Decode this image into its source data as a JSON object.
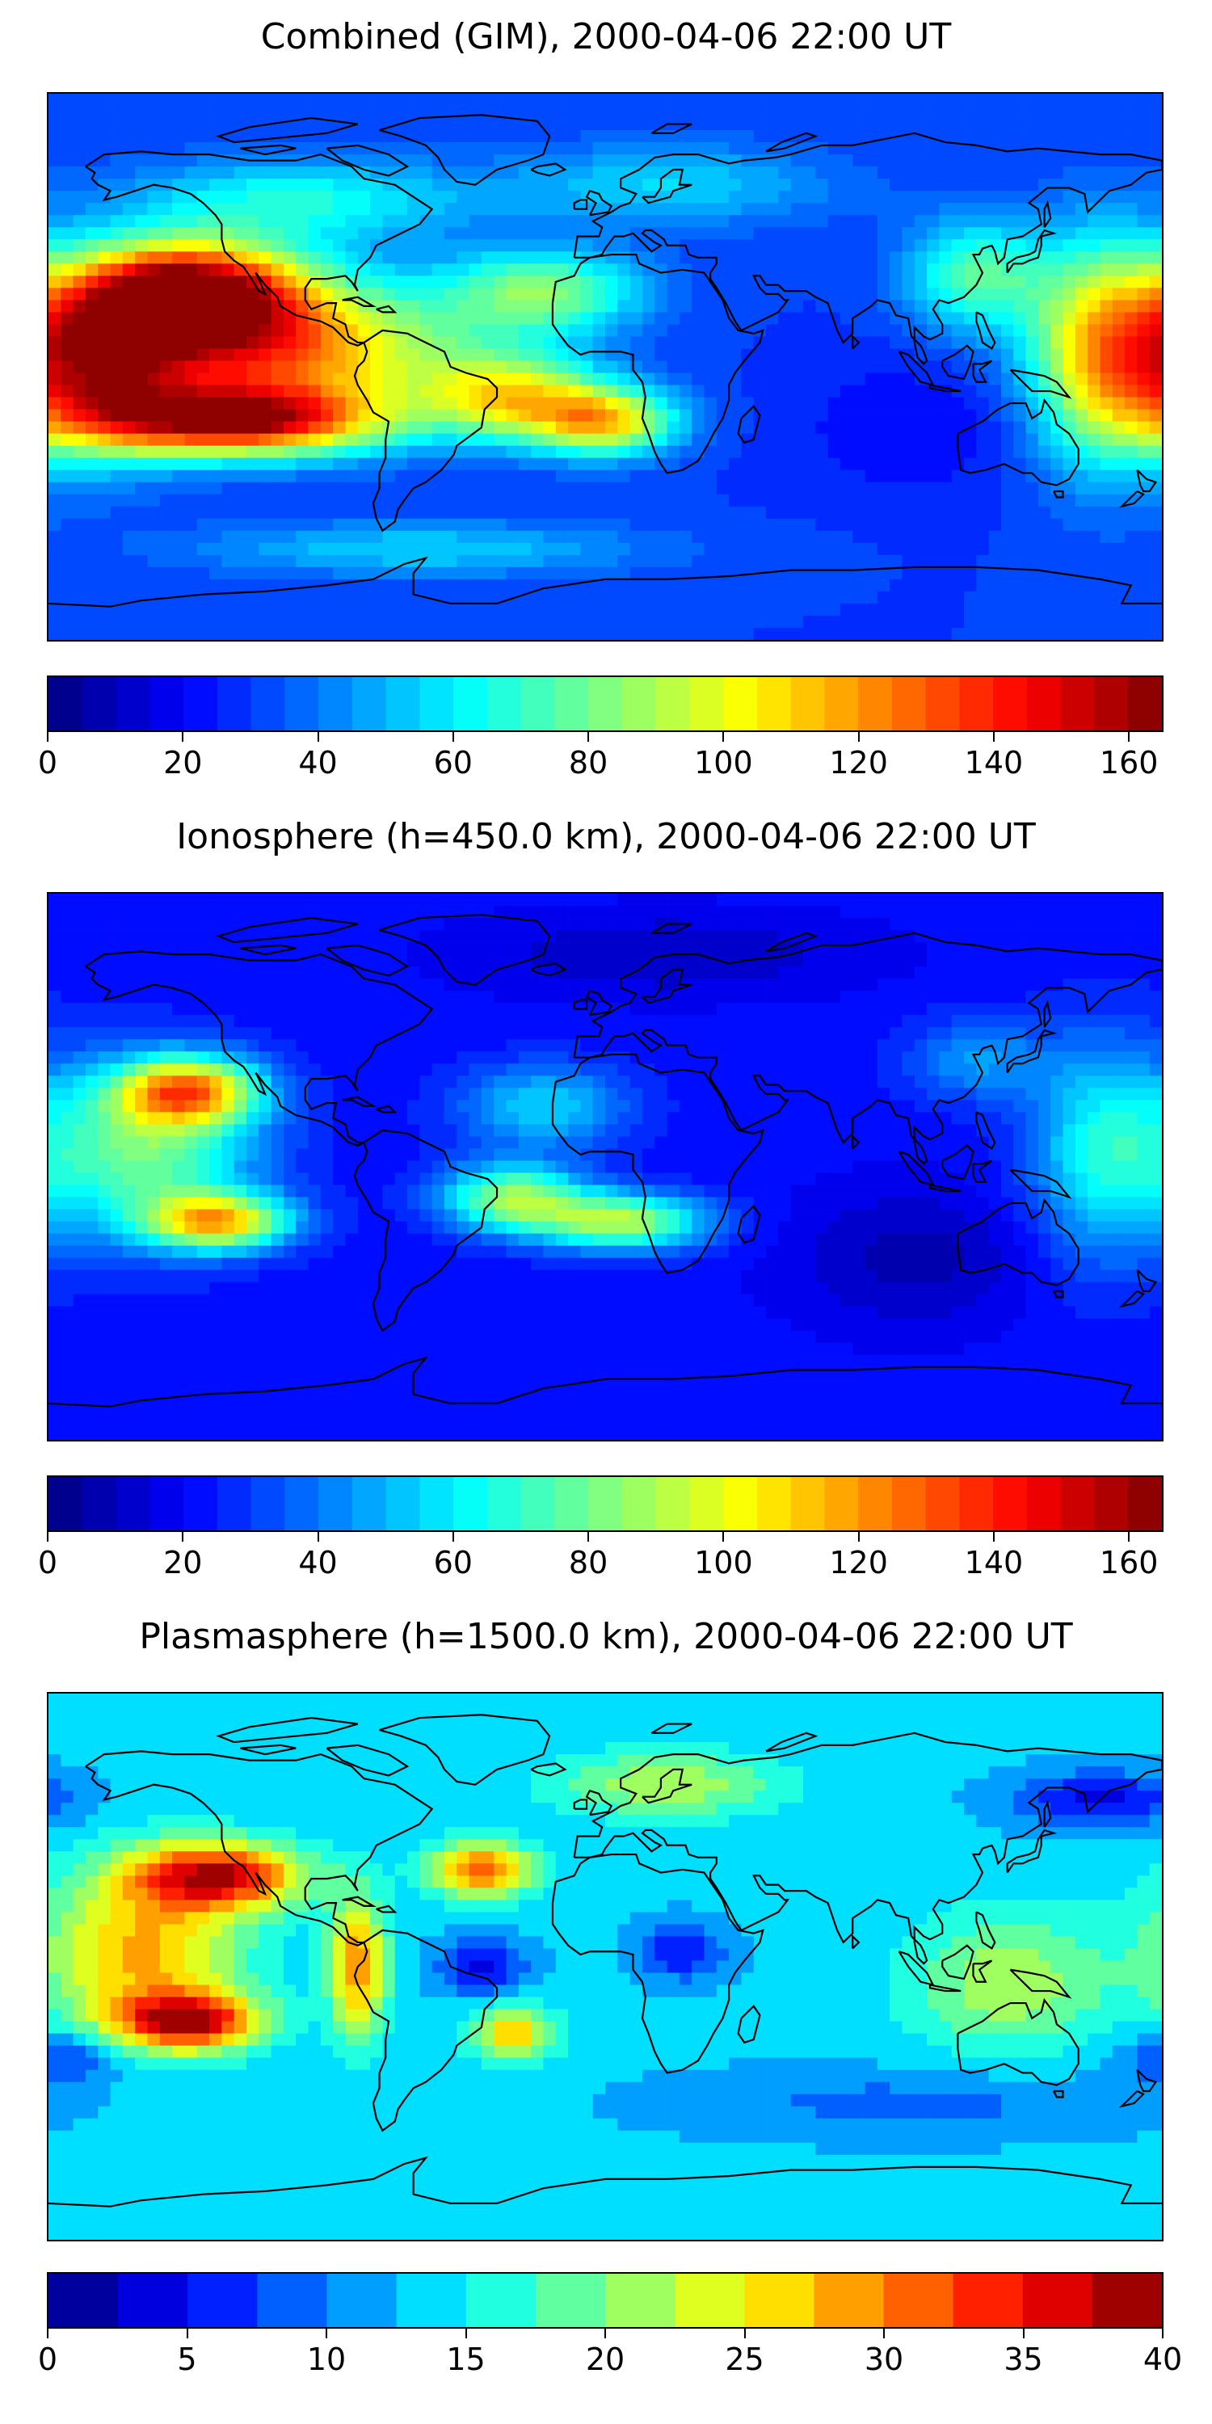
{
  "panels": [
    {
      "title": "Combined (GIM), 2000-04-06 22:00 UT",
      "colorbar": {
        "min": 0,
        "max": 165,
        "levels": 33,
        "ticks": [
          "0",
          "20",
          "40",
          "60",
          "80",
          "100",
          "120",
          "140",
          "160"
        ],
        "tick_values": [
          0,
          20,
          40,
          60,
          80,
          100,
          120,
          140,
          160
        ]
      },
      "background_value": 30,
      "blobs": [
        {
          "lon": -135,
          "lat": 25,
          "value": 155,
          "rx": 40,
          "ry": 18
        },
        {
          "lon": -110,
          "lat": 5,
          "value": 125,
          "rx": 70,
          "ry": 25
        },
        {
          "lon": -120,
          "lat": -18,
          "value": 140,
          "rx": 50,
          "ry": 12
        },
        {
          "lon": -165,
          "lat": 0,
          "value": 110,
          "rx": 30,
          "ry": 30
        },
        {
          "lon": -30,
          "lat": -10,
          "value": 95,
          "rx": 30,
          "ry": 15
        },
        {
          "lon": 0,
          "lat": -18,
          "value": 105,
          "rx": 25,
          "ry": 12
        },
        {
          "lon": -20,
          "lat": 25,
          "value": 80,
          "rx": 35,
          "ry": 15
        },
        {
          "lon": 160,
          "lat": 5,
          "value": 100,
          "rx": 25,
          "ry": 40
        },
        {
          "lon": 120,
          "lat": 30,
          "value": 75,
          "rx": 25,
          "ry": 20
        },
        {
          "lon": 20,
          "lat": 60,
          "value": 55,
          "rx": 60,
          "ry": 15
        },
        {
          "lon": -100,
          "lat": 55,
          "value": 65,
          "rx": 60,
          "ry": 15
        },
        {
          "lon": 100,
          "lat": -20,
          "value": 20,
          "rx": 40,
          "ry": 25
        },
        {
          "lon": -60,
          "lat": -60,
          "value": 55,
          "rx": 80,
          "ry": 10
        }
      ]
    },
    {
      "title": "Ionosphere  (h=450.0 km), 2000-04-06 22:00 UT",
      "colorbar": {
        "min": 0,
        "max": 165,
        "levels": 33,
        "ticks": [
          "0",
          "20",
          "40",
          "60",
          "80",
          "100",
          "120",
          "140",
          "160"
        ],
        "tick_values": [
          0,
          20,
          40,
          60,
          80,
          100,
          120,
          140,
          160
        ]
      },
      "background_value": 22,
      "blobs": [
        {
          "lon": -135,
          "lat": 25,
          "value": 110,
          "rx": 25,
          "ry": 12
        },
        {
          "lon": -125,
          "lat": -18,
          "value": 105,
          "rx": 25,
          "ry": 10
        },
        {
          "lon": -150,
          "lat": 5,
          "value": 80,
          "rx": 40,
          "ry": 30
        },
        {
          "lon": -30,
          "lat": -10,
          "value": 85,
          "rx": 25,
          "ry": 12
        },
        {
          "lon": 5,
          "lat": -18,
          "value": 90,
          "rx": 30,
          "ry": 10
        },
        {
          "lon": -20,
          "lat": 20,
          "value": 55,
          "rx": 30,
          "ry": 15
        },
        {
          "lon": 160,
          "lat": 5,
          "value": 60,
          "rx": 25,
          "ry": 40
        },
        {
          "lon": 120,
          "lat": 35,
          "value": 45,
          "rx": 25,
          "ry": 15
        },
        {
          "lon": 100,
          "lat": -30,
          "value": 8,
          "rx": 45,
          "ry": 25
        },
        {
          "lon": 20,
          "lat": 70,
          "value": 10,
          "rx": 70,
          "ry": 15
        }
      ]
    },
    {
      "title": "Plasmasphere (h=1500.0 km), 2000-04-06 22:00 UT",
      "colorbar": {
        "min": 0,
        "max": 40,
        "levels": 16,
        "ticks": [
          "0",
          "5",
          "10",
          "15",
          "20",
          "25",
          "30",
          "35",
          "40"
        ],
        "tick_values": [
          0,
          5,
          10,
          15,
          20,
          25,
          30,
          35,
          40
        ]
      },
      "background_value": 13,
      "blobs": [
        {
          "lon": -125,
          "lat": 30,
          "value": 36,
          "rx": 30,
          "ry": 12
        },
        {
          "lon": -135,
          "lat": -18,
          "value": 36,
          "rx": 25,
          "ry": 10
        },
        {
          "lon": -150,
          "lat": 5,
          "value": 28,
          "rx": 35,
          "ry": 30
        },
        {
          "lon": -80,
          "lat": 0,
          "value": 30,
          "rx": 10,
          "ry": 25
        },
        {
          "lon": -40,
          "lat": 32,
          "value": 32,
          "rx": 18,
          "ry": 10
        },
        {
          "lon": -30,
          "lat": -22,
          "value": 27,
          "rx": 15,
          "ry": 10
        },
        {
          "lon": -40,
          "lat": 0,
          "value": 4,
          "rx": 15,
          "ry": 10
        },
        {
          "lon": 25,
          "lat": 5,
          "value": 5,
          "rx": 15,
          "ry": 10
        },
        {
          "lon": 130,
          "lat": -5,
          "value": 22,
          "rx": 35,
          "ry": 25
        },
        {
          "lon": 160,
          "lat": 55,
          "value": 4,
          "rx": 30,
          "ry": 10
        },
        {
          "lon": 20,
          "lat": 60,
          "value": 22,
          "rx": 40,
          "ry": 12
        },
        {
          "lon": -175,
          "lat": -30,
          "value": 6,
          "rx": 20,
          "ry": 10
        },
        {
          "lon": 100,
          "lat": -45,
          "value": 9,
          "rx": 80,
          "ry": 12
        }
      ]
    }
  ]
}
